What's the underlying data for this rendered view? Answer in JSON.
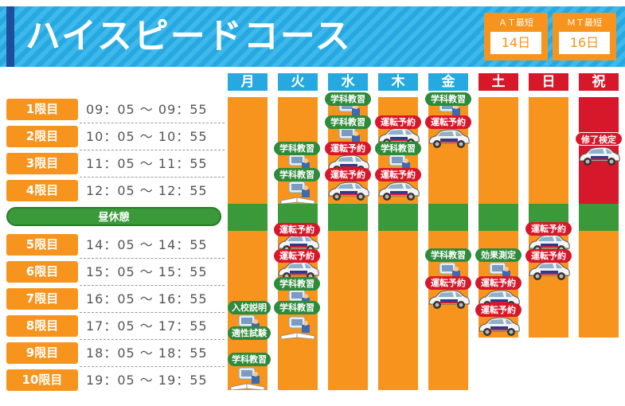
{
  "header": {
    "title": "ハイスピードコース",
    "at": {
      "label": "ＡＴ最短",
      "value": "14日"
    },
    "mt": {
      "label": "ＭＴ最短",
      "value": "16日"
    }
  },
  "days": [
    {
      "label": "月",
      "color": "#25a9e0"
    },
    {
      "label": "火",
      "color": "#25a9e0"
    },
    {
      "label": "水",
      "color": "#25a9e0"
    },
    {
      "label": "木",
      "color": "#25a9e0"
    },
    {
      "label": "金",
      "color": "#25a9e0"
    },
    {
      "label": "土",
      "color": "#d7182a"
    },
    {
      "label": "日",
      "color": "#d7182a"
    },
    {
      "label": "祝",
      "color": "#d7182a"
    }
  ],
  "periods": [
    {
      "label": "1限目",
      "time": "09：05 ～ 09：55"
    },
    {
      "label": "2限目",
      "time": "10：05 ～ 10：55"
    },
    {
      "label": "3限目",
      "time": "11：05 ～ 11：55"
    },
    {
      "label": "4限目",
      "time": "12：05 ～ 12：55"
    },
    {
      "label": "5限目",
      "time": "14：05 ～ 14：55"
    },
    {
      "label": "6限目",
      "time": "15：05 ～ 15：55"
    },
    {
      "label": "7限目",
      "time": "16：05 ～ 16：55"
    },
    {
      "label": "8限目",
      "time": "17：05 ～ 17：55"
    },
    {
      "label": "9限目",
      "time": "18：05 ～ 18：55"
    },
    {
      "label": "10限目",
      "time": "19：05 ～ 19：55"
    }
  ],
  "lunch": "昼休憩",
  "events": {
    "academic": "学科教習",
    "driving": "運転予約",
    "enrollment": "入校説明",
    "aptitude": "適性試験",
    "effect_test": "効果測定",
    "completion_exam": "修了検定"
  },
  "colors": {
    "orange": "#f7941d",
    "green": "#3a9a3a",
    "red": "#d7182a",
    "blue": "#25a9e0"
  }
}
